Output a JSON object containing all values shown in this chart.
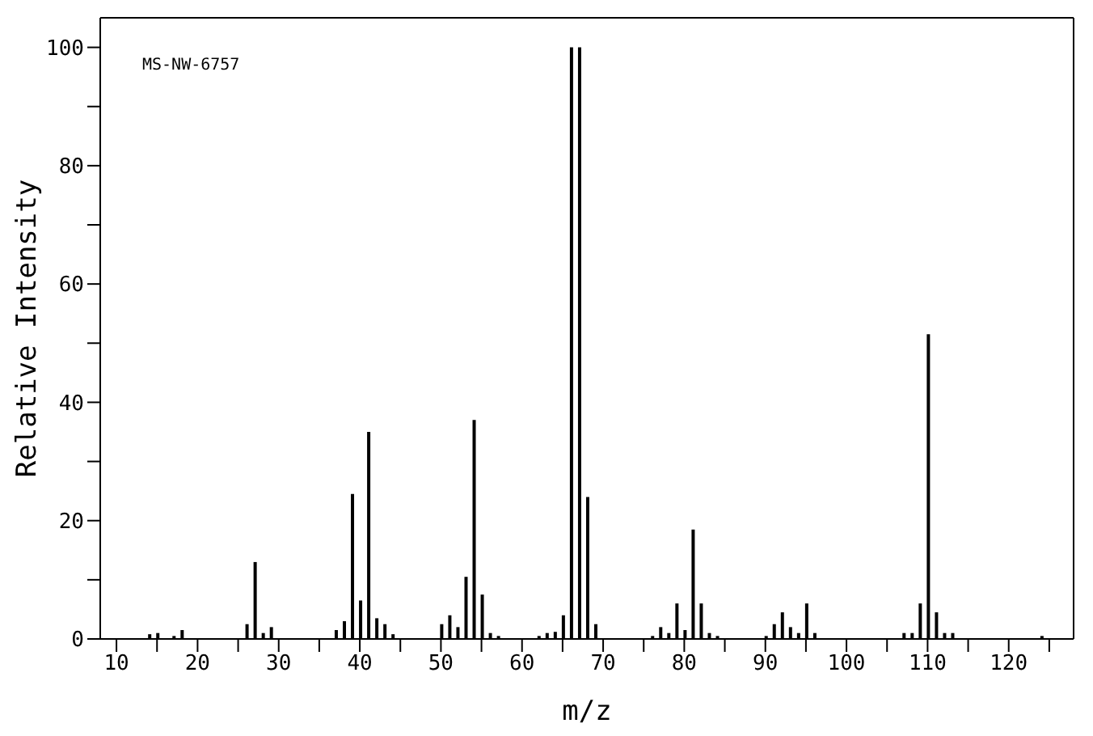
{
  "chart_data": {
    "type": "bar",
    "xlabel": "m/z",
    "ylabel": "Relative Intensity",
    "annotations": [
      "MS-NW-6757"
    ],
    "x": [
      14,
      15,
      17,
      18,
      26,
      27,
      28,
      29,
      37,
      38,
      39,
      40,
      41,
      42,
      43,
      44,
      50,
      51,
      52,
      53,
      54,
      55,
      56,
      57,
      62,
      63,
      64,
      65,
      66,
      67,
      68,
      69,
      76,
      77,
      78,
      79,
      80,
      81,
      82,
      83,
      84,
      90,
      91,
      92,
      93,
      94,
      95,
      96,
      107,
      108,
      109,
      110,
      111,
      112,
      113,
      124
    ],
    "values": [
      0.8,
      1,
      0.5,
      1.5,
      2.5,
      13,
      1,
      2,
      1.5,
      3,
      24.5,
      6.5,
      35,
      3.5,
      2.5,
      0.8,
      2.5,
      4,
      2,
      10.5,
      37,
      7.5,
      1,
      0.5,
      0.5,
      1,
      1.2,
      4,
      100,
      100,
      24,
      2.5,
      0.5,
      2,
      1,
      6,
      1.5,
      18.5,
      6,
      1,
      0.5,
      0.5,
      2.5,
      4.5,
      2,
      1,
      6,
      1,
      1,
      1,
      6,
      51.5,
      4.5,
      1,
      1,
      0.5
    ],
    "color": "#000000",
    "xlim": [
      8,
      128
    ],
    "ylim": [
      0,
      105
    ],
    "xticks": [
      10,
      {
        "value": 15,
        "label": null
      },
      20,
      {
        "value": 25,
        "label": null
      },
      30,
      {
        "value": 35,
        "label": null
      },
      40,
      {
        "value": 45,
        "label": null
      },
      50,
      {
        "value": 55,
        "label": null
      },
      60,
      {
        "value": 65,
        "label": null
      },
      70,
      {
        "value": 75,
        "label": null
      },
      80,
      {
        "value": 85,
        "label": null
      },
      90,
      {
        "value": 95,
        "label": null
      },
      100,
      {
        "value": 105,
        "label": null
      },
      110,
      {
        "value": 115,
        "label": null
      },
      120,
      {
        "value": 125,
        "label": null
      }
    ],
    "yticks": [
      0,
      {
        "value": 10,
        "label": null
      },
      20,
      {
        "value": 30,
        "label": null
      },
      40,
      {
        "value": 50,
        "label": null
      },
      60,
      {
        "value": 70,
        "label": null
      },
      80,
      {
        "value": 90,
        "label": null
      },
      100
    ],
    "grid": false
  }
}
